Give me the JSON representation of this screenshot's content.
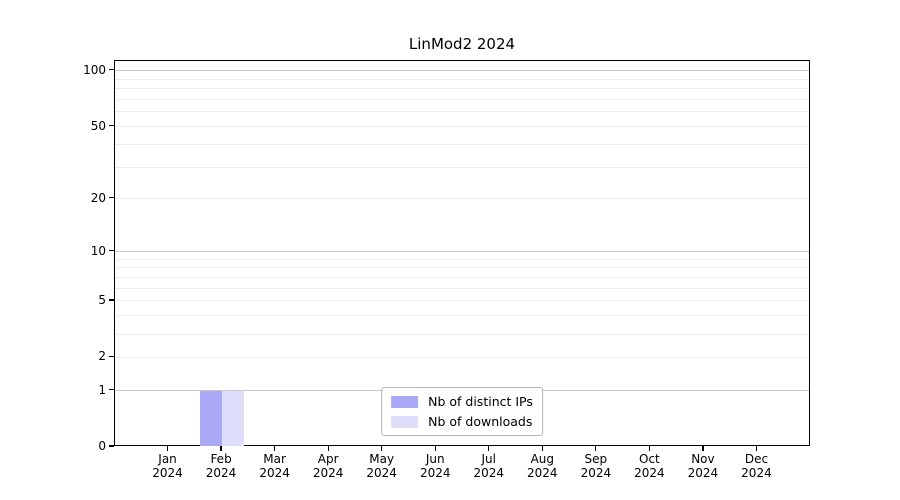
{
  "chart_data": {
    "type": "bar",
    "title": "LinMod2 2024",
    "xlabel": "",
    "ylabel": "",
    "yscale": "log1p",
    "ylim": [
      0,
      113
    ],
    "y_tick_labels": [
      0,
      1,
      2,
      5,
      10,
      20,
      50,
      100
    ],
    "gridlines": {
      "major": [
        1,
        10,
        100
      ],
      "minor": [
        2,
        3,
        4,
        5,
        6,
        7,
        8,
        9,
        20,
        30,
        40,
        50,
        60,
        70,
        80,
        90
      ]
    },
    "grid": true,
    "legend_position": "lower center",
    "categories": [
      {
        "month": "Jan",
        "year": "2024"
      },
      {
        "month": "Feb",
        "year": "2024"
      },
      {
        "month": "Mar",
        "year": "2024"
      },
      {
        "month": "Apr",
        "year": "2024"
      },
      {
        "month": "May",
        "year": "2024"
      },
      {
        "month": "Jun",
        "year": "2024"
      },
      {
        "month": "Jul",
        "year": "2024"
      },
      {
        "month": "Aug",
        "year": "2024"
      },
      {
        "month": "Sep",
        "year": "2024"
      },
      {
        "month": "Oct",
        "year": "2024"
      },
      {
        "month": "Nov",
        "year": "2024"
      },
      {
        "month": "Dec",
        "year": "2024"
      }
    ],
    "series": [
      {
        "name": "Nb of distinct IPs",
        "color": "#a9a9f6",
        "values": [
          0,
          1,
          0,
          0,
          0,
          0,
          0,
          0,
          0,
          0,
          0,
          0
        ]
      },
      {
        "name": "Nb of downloads",
        "color": "#dedefa",
        "values": [
          0,
          1,
          0,
          0,
          0,
          0,
          0,
          0,
          0,
          0,
          0,
          0
        ]
      }
    ]
  },
  "style": {
    "background": "#ffffff",
    "axis_color": "#000000",
    "text_color": "#000000",
    "grid_major_color": "#c9c9c9",
    "grid_minor_color": "#ededed",
    "legend_border_color": "#b5b5b5",
    "legend_background": "rgba(255,255,255,0.85)"
  }
}
